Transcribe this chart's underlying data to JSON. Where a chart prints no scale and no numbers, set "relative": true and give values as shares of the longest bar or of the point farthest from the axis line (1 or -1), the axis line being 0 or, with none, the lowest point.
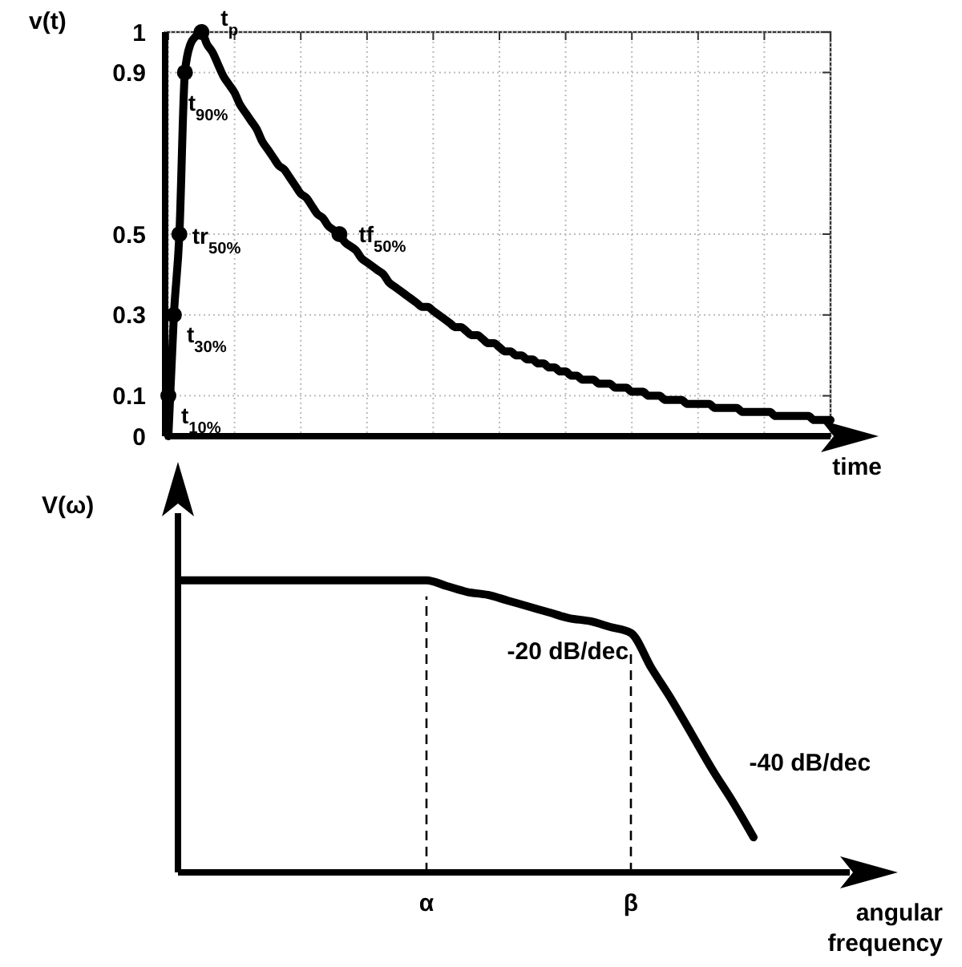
{
  "chart_data": [
    {
      "type": "line",
      "xlabel": "time",
      "ylabel": "v(t)",
      "ylim": [
        0,
        1
      ],
      "categories": [
        null,
        null,
        null,
        null,
        null,
        null,
        null,
        null,
        null,
        null,
        null,
        null,
        null,
        null,
        null,
        null,
        null,
        null,
        null,
        null,
        null,
        null,
        null,
        null,
        null,
        null,
        null,
        null,
        null,
        null,
        null,
        null,
        null,
        null,
        null,
        null,
        null,
        null,
        null,
        null,
        null,
        null,
        null,
        null,
        null,
        null,
        null,
        null,
        null,
        null,
        null,
        null,
        null,
        null,
        null,
        null,
        null,
        null,
        null,
        null,
        null,
        null,
        null,
        null,
        null,
        null,
        null,
        null,
        null,
        null,
        null,
        null,
        null,
        null,
        null,
        null,
        null,
        null,
        null,
        null,
        null,
        null,
        null,
        null,
        null,
        null,
        null,
        null,
        null,
        null,
        null,
        null,
        null,
        null,
        null,
        null,
        null,
        null,
        null,
        null,
        null,
        null,
        null,
        null,
        null,
        null,
        null,
        null,
        null,
        null,
        null,
        null,
        null,
        null,
        null,
        null,
        null,
        null,
        null,
        null,
        null
      ],
      "yticks": [
        0,
        0.1,
        0.3,
        0.5,
        0.9,
        1
      ],
      "tick_labels": "y",
      "grid": true,
      "line_style": "solid",
      "series": [
        {
          "color": "#000000",
          "values": [
            0,
            0.3,
            0.5,
            0.9,
            0.97,
            0.99,
            1,
            0.97,
            0.95,
            0.92,
            0.89,
            0.87,
            0.85,
            0.82,
            0.8,
            0.78,
            0.76,
            0.73,
            0.71,
            0.69,
            0.67,
            0.66,
            0.64,
            0.62,
            0.6,
            0.59,
            0.57,
            0.55,
            0.54,
            0.52,
            0.51,
            0.5,
            0.48,
            0.47,
            0.46,
            0.44,
            0.43,
            0.42,
            0.41,
            0.4,
            0.38,
            0.37,
            0.36,
            0.35,
            0.34,
            0.33,
            0.32,
            0.32,
            0.31,
            0.3,
            0.29,
            0.28,
            0.27,
            0.27,
            0.26,
            0.25,
            0.25,
            0.24,
            0.23,
            0.23,
            0.22,
            0.21,
            0.21,
            0.2,
            0.2,
            0.19,
            0.19,
            0.18,
            0.18,
            0.17,
            0.17,
            0.16,
            0.16,
            0.15,
            0.15,
            0.14,
            0.14,
            0.14,
            0.13,
            0.13,
            0.13,
            0.12,
            0.12,
            0.12,
            0.11,
            0.11,
            0.11,
            0.1,
            0.1,
            0.1,
            0.09,
            0.09,
            0.09,
            0.09,
            0.08,
            0.08,
            0.08,
            0.08,
            0.08,
            0.07,
            0.07,
            0.07,
            0.07,
            0.07,
            0.06,
            0.06,
            0.06,
            0.06,
            0.06,
            0.06,
            0.05,
            0.05,
            0.05,
            0.05,
            0.05,
            0.05,
            0.05,
            0.04,
            0.04,
            0.04,
            0.04
          ]
        },
        {
          "type": "scatter",
          "color": "#000000",
          "marker": "circle",
          "values": [
            0.1,
            0.3,
            0.5,
            0.9,
            null,
            null,
            1,
            null,
            null,
            null,
            null,
            null,
            null,
            null,
            null,
            null,
            null,
            null,
            null,
            null,
            null,
            null,
            null,
            null,
            null,
            null,
            null,
            null,
            null,
            null,
            null,
            0.5,
            null,
            null,
            null,
            null,
            null,
            null,
            null,
            null,
            null,
            null,
            null,
            null,
            null,
            null,
            null,
            null,
            null,
            null,
            null,
            null,
            null,
            null,
            null,
            null,
            null,
            null,
            null,
            null,
            null,
            null,
            null,
            null,
            null,
            null,
            null,
            null,
            null,
            null,
            null,
            null,
            null,
            null,
            null,
            null,
            null,
            null,
            null,
            null,
            null,
            null,
            null,
            null,
            null,
            null,
            null,
            null,
            null,
            null,
            null,
            null,
            null,
            null,
            null,
            null,
            null,
            null,
            null,
            null,
            null,
            null,
            null,
            null,
            null,
            null,
            null,
            null,
            null,
            null,
            null,
            null,
            null,
            null,
            null,
            null,
            null,
            null,
            null,
            null,
            null
          ]
        }
      ],
      "annotations": [
        "t$_{10%}$",
        "t$_{30%}$",
        "tr$_{50%}$",
        "t$_{90%}$",
        "t$_{p}$",
        "tf$_{50%}$"
      ]
    },
    {
      "type": "line",
      "relative": true,
      "xlabel": "angular frequency",
      "ylabel": "V(ω)",
      "categories": [
        null,
        null,
        null,
        null,
        null,
        null,
        null,
        null,
        null,
        null,
        null,
        null,
        "α",
        null,
        null,
        null,
        null,
        null,
        null,
        null,
        null,
        null,
        "β",
        null,
        null,
        null,
        null,
        null,
        null
      ],
      "tick_labels": "x",
      "grid": false,
      "line_style": "solid",
      "series": [
        {
          "color": "#000000",
          "values": [
            1,
            1,
            1,
            1,
            1,
            1,
            1,
            1,
            1,
            1,
            1,
            1,
            1,
            0.98,
            0.96,
            0.95,
            0.93,
            0.91,
            0.89,
            0.87,
            0.86,
            0.84,
            0.82,
            0.7,
            0.59,
            0.47,
            0.35,
            0.24,
            0.12
          ]
        }
      ],
      "ref_lines": [
        {
          "axis": "x",
          "value": "α",
          "line_style": "dashed"
        },
        {
          "axis": "x",
          "value": "β",
          "line_style": "dashed"
        }
      ],
      "annotations": [
        "-20 dB/dec",
        "-40 dB/dec"
      ]
    }
  ]
}
